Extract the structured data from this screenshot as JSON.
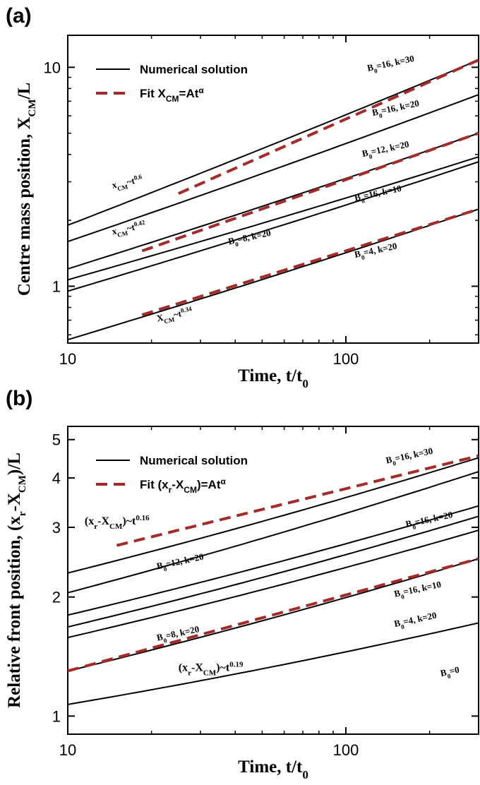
{
  "chart_data": [
    {
      "panel_label": "(a)",
      "type": "line",
      "xlabel": "Time, t/t",
      "xlabel_sub": "0",
      "ylabel": "Centre mass position, X",
      "ylabel_sub": "CM",
      "ylabel_suffix": "/L",
      "x_scale": "log",
      "y_scale": "log",
      "xlim": [
        10,
        300
      ],
      "ylim": [
        0.55,
        14
      ],
      "x_ticks": [
        {
          "value": 10,
          "label": "10"
        },
        {
          "value": 100,
          "label": "100"
        }
      ],
      "y_ticks": [
        {
          "value": 1,
          "label": "1"
        },
        {
          "value": 10,
          "label": "10"
        }
      ],
      "legend": {
        "placement": "top-left",
        "entries": [
          {
            "style": "solid",
            "label": "Numerical solution"
          },
          {
            "style": "dashed",
            "label_prefix": "Fit  X",
            "label_sub": "CM",
            "label_mid": "=At",
            "label_sup": "α"
          }
        ]
      },
      "series": [
        {
          "style": "solid",
          "color": "#000000",
          "x": [
            10,
            300
          ],
          "y": [
            1.9,
            10.8
          ]
        },
        {
          "style": "solid",
          "color": "#000000",
          "x": [
            10,
            300
          ],
          "y": [
            1.6,
            7.5
          ]
        },
        {
          "style": "solid",
          "color": "#000000",
          "x": [
            10,
            300
          ],
          "y": [
            1.2,
            5.0
          ]
        },
        {
          "style": "solid",
          "color": "#000000",
          "x": [
            10,
            300
          ],
          "y": [
            1.07,
            3.9
          ]
        },
        {
          "style": "solid",
          "color": "#000000",
          "x": [
            10,
            300
          ],
          "y": [
            0.95,
            3.7
          ]
        },
        {
          "style": "solid",
          "color": "#000000",
          "x": [
            10,
            300
          ],
          "y": [
            0.57,
            2.25
          ]
        },
        {
          "style": "dashed",
          "color": "#a52a2a",
          "x": [
            25,
            300
          ],
          "y": [
            2.65,
            10.8
          ]
        },
        {
          "style": "dashed",
          "color": "#a52a2a",
          "x": [
            18.5,
            300
          ],
          "y": [
            1.45,
            5.0
          ]
        },
        {
          "style": "dashed",
          "color": "#a52a2a",
          "x": [
            18.5,
            300
          ],
          "y": [
            0.74,
            2.25
          ]
        }
      ],
      "annotations": [
        {
          "parts": [
            [
              "B",
              "n"
            ],
            [
              "0",
              "sub"
            ],
            [
              "=16, k=30",
              "n"
            ]
          ],
          "x": 120,
          "y": 9.6
        },
        {
          "parts": [
            [
              "B",
              "n"
            ],
            [
              "0",
              "sub"
            ],
            [
              "=16, k=20",
              "n"
            ]
          ],
          "x": 125,
          "y": 6.0
        },
        {
          "parts": [
            [
              "B",
              "n"
            ],
            [
              "0",
              "sub"
            ],
            [
              "=12, k=20",
              "n"
            ]
          ],
          "x": 115,
          "y": 3.9
        },
        {
          "parts": [
            [
              "B",
              "n"
            ],
            [
              "0",
              "sub"
            ],
            [
              "=16, k=10",
              "n"
            ]
          ],
          "x": 108,
          "y": 2.45
        },
        {
          "parts": [
            [
              "B",
              "n"
            ],
            [
              "0",
              "sub"
            ],
            [
              "=8, k=20",
              "n"
            ]
          ],
          "x": 38,
          "y": 1.55
        },
        {
          "parts": [
            [
              "B",
              "n"
            ],
            [
              "0",
              "sub"
            ],
            [
              "=4, k=20",
              "n"
            ]
          ],
          "x": 108,
          "y": 1.35
        },
        {
          "parts": [
            [
              "x",
              "n"
            ],
            [
              "CM",
              "sub"
            ],
            [
              "~t",
              "n"
            ],
            [
              "0.6",
              "sup"
            ]
          ],
          "x": 14.5,
          "y": 2.8
        },
        {
          "parts": [
            [
              "x",
              "n"
            ],
            [
              "CM",
              "sub"
            ],
            [
              "~t",
              "n"
            ],
            [
              "0.42",
              "sup"
            ]
          ],
          "x": 14.5,
          "y": 1.72
        },
        {
          "parts": [
            [
              "X",
              "n"
            ],
            [
              "CM",
              "sub"
            ],
            [
              "~t",
              "n"
            ],
            [
              "0.34",
              "sup"
            ]
          ],
          "x": 21,
          "y": 0.69
        }
      ]
    },
    {
      "panel_label": "(b)",
      "type": "line",
      "xlabel": "Time, t/t",
      "xlabel_sub": "0",
      "ylabel": "Relative front position, (x",
      "ylabel_sub": "r",
      "ylabel_mid": "-X",
      "ylabel_sub2": "CM",
      "ylabel_suffix": ")/L",
      "x_scale": "log",
      "y_scale": "log",
      "xlim": [
        10,
        300
      ],
      "ylim": [
        0.9,
        5.4
      ],
      "x_ticks": [
        {
          "value": 10,
          "label": "10"
        },
        {
          "value": 100,
          "label": "100"
        }
      ],
      "y_ticks": [
        {
          "value": 1,
          "label": "1"
        },
        {
          "value": 2,
          "label": "2"
        },
        {
          "value": 3,
          "label": "3"
        },
        {
          "value": 4,
          "label": "4"
        },
        {
          "value": 5,
          "label": "5"
        }
      ],
      "legend": {
        "placement": "top-left",
        "entries": [
          {
            "style": "solid",
            "label": "Numerical solution"
          },
          {
            "style": "dashed",
            "label_prefix": "Fit  (x",
            "label_sub": "r",
            "label_mid": "-X",
            "label_sub2": "CM",
            "label_mid2": ")=At",
            "label_sup": "α"
          }
        ]
      },
      "series": [
        {
          "style": "solid",
          "color": "#000000",
          "x": [
            10,
            300
          ],
          "y": [
            2.3,
            4.5
          ]
        },
        {
          "style": "solid",
          "color": "#000000",
          "x": [
            10,
            300
          ],
          "y": [
            2.05,
            4.15
          ]
        },
        {
          "style": "solid",
          "color": "#000000",
          "x": [
            10,
            300
          ],
          "y": [
            1.8,
            3.4
          ]
        },
        {
          "style": "solid",
          "color": "#000000",
          "x": [
            10,
            300
          ],
          "y": [
            1.68,
            3.2
          ]
        },
        {
          "style": "solid",
          "color": "#000000",
          "x": [
            10,
            300
          ],
          "y": [
            1.58,
            2.95
          ]
        },
        {
          "style": "solid",
          "color": "#000000",
          "x": [
            10,
            300
          ],
          "y": [
            1.3,
            2.5
          ]
        },
        {
          "style": "solid",
          "color": "#000000",
          "x": [
            10,
            300
          ],
          "y": [
            1.07,
            1.72
          ]
        },
        {
          "style": "dashed",
          "color": "#a52a2a",
          "x": [
            15,
            300
          ],
          "y": [
            2.7,
            4.55
          ]
        },
        {
          "style": "dashed",
          "color": "#a52a2a",
          "x": [
            10,
            300
          ],
          "y": [
            1.3,
            2.5
          ]
        }
      ],
      "annotations": [
        {
          "parts": [
            [
              "B",
              "n"
            ],
            [
              "0",
              "sub"
            ],
            [
              "=16, k=30",
              "n"
            ]
          ],
          "x": 140,
          "y": 4.35
        },
        {
          "parts": [
            [
              "B",
              "n"
            ],
            [
              "0",
              "sub"
            ],
            [
              "=16, k=20",
              "n"
            ]
          ],
          "x": 165,
          "y": 3.0
        },
        {
          "parts": [
            [
              "B",
              "n"
            ],
            [
              "0",
              "sub"
            ],
            [
              "=12, k=20",
              "n"
            ]
          ],
          "x": 21,
          "y": 2.35
        },
        {
          "parts": [
            [
              "B",
              "n"
            ],
            [
              "0",
              "sub"
            ],
            [
              "=16, k=10",
              "n"
            ]
          ],
          "x": 150,
          "y": 2.0
        },
        {
          "parts": [
            [
              "B",
              "n"
            ],
            [
              "0",
              "sub"
            ],
            [
              "=8, k=20",
              "n"
            ]
          ],
          "x": 21,
          "y": 1.55
        },
        {
          "parts": [
            [
              "B",
              "n"
            ],
            [
              "0",
              "sub"
            ],
            [
              "=4, k=20",
              "n"
            ]
          ],
          "x": 150,
          "y": 1.68
        },
        {
          "parts": [
            [
              "B",
              "n"
            ],
            [
              "0",
              "sub"
            ],
            [
              "=0",
              "n"
            ]
          ],
          "x": 220,
          "y": 1.26
        }
      ],
      "fit_labels": [
        {
          "parts": [
            [
              "(x",
              "n"
            ],
            [
              "r",
              "sub"
            ],
            [
              "-X",
              "n"
            ],
            [
              "CM",
              "sub"
            ],
            [
              ")~t",
              "n"
            ],
            [
              "0.16",
              "sup"
            ]
          ],
          "x": 11.5,
          "y": 3.05
        },
        {
          "parts": [
            [
              "(x",
              "n"
            ],
            [
              "r",
              "sub"
            ],
            [
              "-X",
              "n"
            ],
            [
              "CM",
              "sub"
            ],
            [
              ")~t",
              "n"
            ],
            [
              "0.19",
              "sup"
            ]
          ],
          "x": 25,
          "y": 1.3
        }
      ]
    }
  ]
}
